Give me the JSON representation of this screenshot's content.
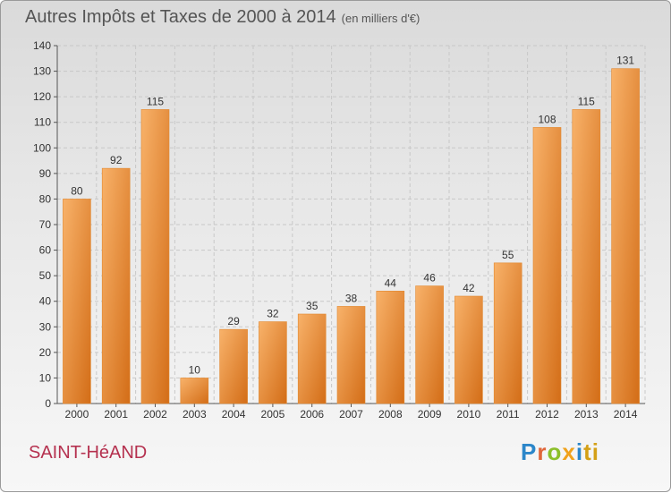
{
  "chart_data": {
    "type": "bar",
    "title": "Autres Impôts et Taxes de 2000 à 2014",
    "subtitle": "(en milliers d'€)",
    "categories": [
      "2000",
      "2001",
      "2002",
      "2003",
      "2004",
      "2005",
      "2006",
      "2007",
      "2008",
      "2009",
      "2010",
      "2011",
      "2012",
      "2013",
      "2014"
    ],
    "values": [
      80,
      92,
      115,
      10,
      29,
      32,
      35,
      38,
      44,
      46,
      42,
      55,
      108,
      115,
      131
    ],
    "ylim": [
      0,
      140
    ],
    "yticks": [
      0,
      10,
      20,
      30,
      40,
      50,
      60,
      70,
      80,
      90,
      100,
      110,
      120,
      130,
      140
    ],
    "xlabel": "",
    "ylabel": "",
    "grid": true,
    "colors": {
      "bar_light": "#f6a85a",
      "bar_dark": "#d9731b",
      "text": "#333333"
    }
  },
  "footer": {
    "commune": "SAINT-HéAND",
    "logo": [
      "P",
      "r",
      "o",
      "x",
      "i",
      "ti"
    ]
  }
}
